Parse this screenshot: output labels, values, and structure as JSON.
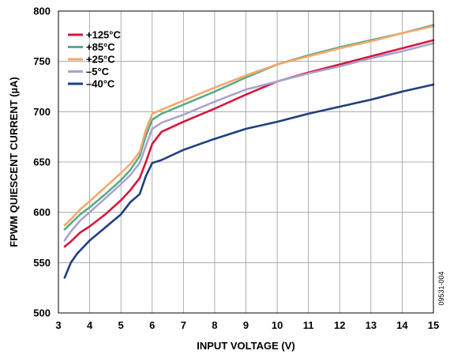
{
  "chart_data": {
    "type": "line",
    "xlabel": "INPUT VOLTAGE (V)",
    "ylabel": "FPWM QUIESCENT CURRENT (µA)",
    "xlim": [
      3,
      15
    ],
    "ylim": [
      500,
      800
    ],
    "x_ticks": [
      3,
      4,
      5,
      6,
      7,
      8,
      9,
      10,
      11,
      12,
      13,
      14,
      15
    ],
    "y_ticks": [
      500,
      550,
      600,
      650,
      700,
      750,
      800
    ],
    "grid": true,
    "legend_position": "top-left",
    "figure_id": "09531-004",
    "series": [
      {
        "name": "+125°C",
        "color": "#d7173b",
        "x": [
          3.2,
          3.4,
          3.7,
          4.0,
          4.5,
          5.0,
          5.3,
          5.6,
          5.8,
          6.0,
          6.3,
          7.0,
          8.0,
          9.0,
          10.0,
          11.0,
          12.0,
          13.0,
          14.0,
          15.0
        ],
        "y": [
          566,
          571,
          580,
          586,
          598,
          612,
          622,
          634,
          650,
          668,
          680,
          690,
          703,
          717,
          730,
          739,
          747,
          755,
          763,
          771
        ]
      },
      {
        "name": "+85°C",
        "color": "#5aaa8a",
        "x": [
          3.2,
          3.4,
          3.7,
          4.0,
          4.5,
          5.0,
          5.3,
          5.6,
          5.8,
          6.0,
          6.3,
          7.0,
          8.0,
          9.0,
          10.0,
          11.0,
          12.0,
          13.0,
          14.0,
          15.0
        ],
        "y": [
          583,
          589,
          598,
          605,
          618,
          632,
          642,
          656,
          676,
          692,
          698,
          707,
          720,
          734,
          747,
          756,
          764,
          771,
          778,
          786
        ]
      },
      {
        "name": "+25°C",
        "color": "#f5a86a",
        "x": [
          3.2,
          3.4,
          3.7,
          4.0,
          4.5,
          5.0,
          5.3,
          5.6,
          5.8,
          6.0,
          6.3,
          7.0,
          8.0,
          9.0,
          10.0,
          11.0,
          12.0,
          13.0,
          14.0,
          15.0
        ],
        "y": [
          587,
          593,
          603,
          611,
          625,
          639,
          648,
          660,
          682,
          698,
          702,
          711,
          724,
          736,
          747,
          755,
          763,
          770,
          778,
          785
        ]
      },
      {
        "name": "–5°C",
        "color": "#a9a3cf",
        "x": [
          3.2,
          3.4,
          3.7,
          4.0,
          4.5,
          5.0,
          5.3,
          5.6,
          5.8,
          6.0,
          6.3,
          7.0,
          8.0,
          9.0,
          10.0,
          11.0,
          12.0,
          13.0,
          14.0,
          15.0
        ],
        "y": [
          572,
          581,
          592,
          600,
          614,
          628,
          637,
          649,
          666,
          683,
          689,
          697,
          710,
          722,
          730,
          738,
          745,
          753,
          760,
          768
        ]
      },
      {
        "name": "–40°C",
        "color": "#1f3f7f",
        "x": [
          3.2,
          3.4,
          3.6,
          4.0,
          4.5,
          5.0,
          5.3,
          5.6,
          5.8,
          6.0,
          6.3,
          7.0,
          8.0,
          9.0,
          10.0,
          11.0,
          12.0,
          13.0,
          14.0,
          15.0
        ],
        "y": [
          535,
          550,
          559,
          572,
          585,
          598,
          610,
          618,
          636,
          649,
          652,
          662,
          673,
          683,
          690,
          698,
          705,
          712,
          720,
          727
        ]
      }
    ]
  }
}
